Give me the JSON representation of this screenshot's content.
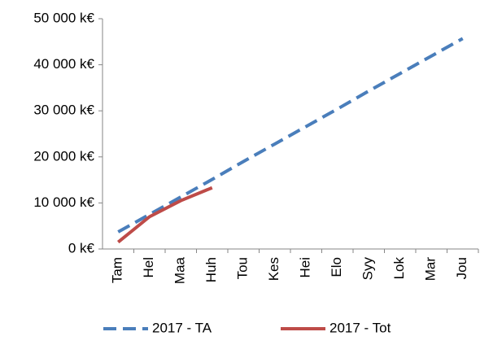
{
  "chart_data": {
    "type": "line",
    "categories": [
      "Tam",
      "Hel",
      "Maa",
      "Huh",
      "Tou",
      "Kes",
      "Hei",
      "Elo",
      "Syy",
      "Lok",
      "Mar",
      "Jou"
    ],
    "series": [
      {
        "name": "2017 - TA",
        "color": "#4a7ebb",
        "dashed": true,
        "values": [
          3700,
          7500,
          11300,
          15100,
          19000,
          22800,
          26600,
          30400,
          34300,
          38100,
          41900,
          45700
        ]
      },
      {
        "name": "2017 - Tot",
        "color": "#be4b48",
        "dashed": false,
        "values": [
          1500,
          7000,
          10500,
          13300,
          null,
          null,
          null,
          null,
          null,
          null,
          null,
          null
        ]
      }
    ],
    "ylim": [
      0,
      50000
    ],
    "yticks": [
      {
        "value": 0,
        "label": "0 k€"
      },
      {
        "value": 10000,
        "label": "10 000 k€"
      },
      {
        "value": 20000,
        "label": "20 000 k€"
      },
      {
        "value": 30000,
        "label": "30 000 k€"
      },
      {
        "value": 40000,
        "label": "40 000 k€"
      },
      {
        "value": 50000,
        "label": "50 000 k€"
      }
    ],
    "legend": "bottom"
  }
}
